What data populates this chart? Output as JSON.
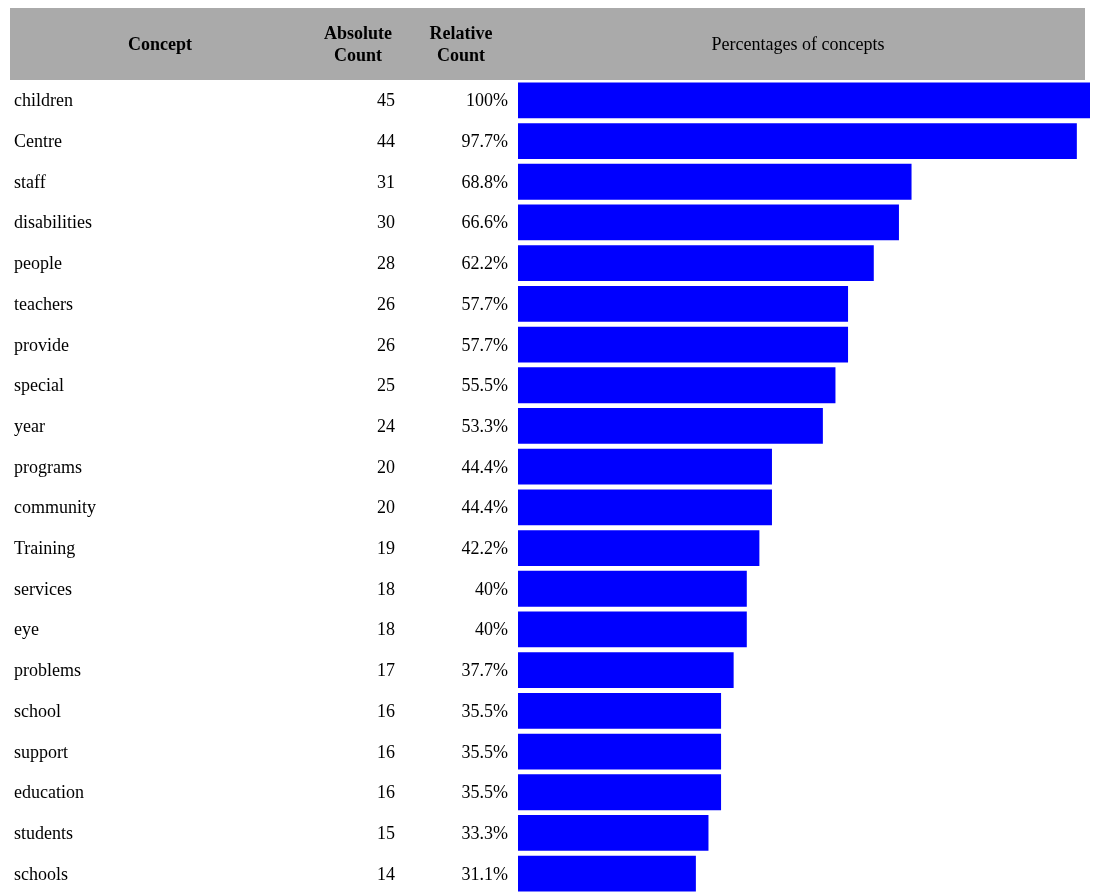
{
  "chart_data": {
    "type": "bar",
    "orientation": "horizontal",
    "xlabel": "Percentages of concepts",
    "ylabel": "Concept",
    "color": "#0000ff",
    "data_labels": false,
    "categories": [
      "children",
      "Centre",
      "staff",
      "disabilities",
      "people",
      "teachers",
      "provide",
      "special",
      "year",
      "programs",
      "community",
      "Training",
      "services",
      "eye",
      "problems",
      "school",
      "support",
      "education",
      "students",
      "schools"
    ],
    "values": [
      100,
      97.7,
      68.8,
      66.6,
      62.2,
      57.7,
      57.7,
      55.5,
      53.3,
      44.4,
      44.4,
      42.2,
      40,
      40,
      37.7,
      35.5,
      35.5,
      35.5,
      33.3,
      31.1
    ],
    "value_labels": [
      "100%",
      "97.7%",
      "68.8%",
      "66.6%",
      "62.2%",
      "57.7%",
      "57.7%",
      "55.5%",
      "53.3%",
      "44.4%",
      "44.4%",
      "42.2%",
      "40%",
      "40%",
      "37.7%",
      "35.5%",
      "35.5%",
      "35.5%",
      "33.3%",
      "31.1%"
    ],
    "annotations": [
      "Absolute Count",
      "Relative Count",
      "45",
      "44",
      "31",
      "30",
      "28",
      "26",
      "26",
      "25",
      "24",
      "20",
      "20",
      "19",
      "18",
      "18",
      "17",
      "16",
      "16",
      "16",
      "15",
      "14"
    ]
  }
}
